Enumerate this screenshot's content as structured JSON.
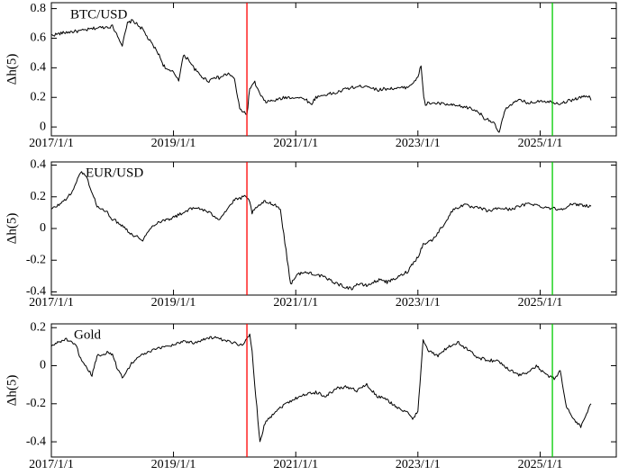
{
  "chart_data": [
    {
      "type": "line",
      "label": "BTC/USD",
      "ylabel": "Δh(5)",
      "x_ticks": [
        "2017/1/1",
        "2019/1/1",
        "2021/1/1",
        "2023/1/1",
        "2025/1/1"
      ],
      "y_ticks": [
        "0",
        "0.2",
        "0.4",
        "0.6",
        "0.8"
      ],
      "xlim": [
        "2017-01-01",
        "2026-04-01"
      ],
      "ylim": [
        -0.06,
        0.84
      ],
      "vlines": [
        {
          "x": "2020-03-15",
          "color": "#ff0000"
        },
        {
          "x": "2025-03-15",
          "color": "#00cc00"
        }
      ],
      "series": [
        {
          "color": "#000000",
          "x": [
            "2017-01-01",
            "2017-04-01",
            "2017-07-01",
            "2017-10-01",
            "2018-01-01",
            "2018-02-01",
            "2018-03-01",
            "2018-04-01",
            "2018-05-01",
            "2018-06-01",
            "2018-07-01",
            "2018-08-01",
            "2018-09-01",
            "2018-10-01",
            "2018-11-01",
            "2018-12-01",
            "2019-01-01",
            "2019-02-01",
            "2019-03-01",
            "2019-04-01",
            "2019-05-01",
            "2019-06-01",
            "2019-07-01",
            "2019-08-01",
            "2019-09-01",
            "2019-10-01",
            "2019-11-01",
            "2019-12-01",
            "2020-01-01",
            "2020-02-01",
            "2020-03-01",
            "2020-03-15",
            "2020-04-01",
            "2020-05-01",
            "2020-06-01",
            "2020-07-01",
            "2020-09-01",
            "2020-11-01",
            "2021-01-01",
            "2021-03-01",
            "2021-04-01",
            "2021-05-01",
            "2021-07-01",
            "2021-09-01",
            "2021-11-01",
            "2022-01-01",
            "2022-03-01",
            "2022-05-01",
            "2022-07-01",
            "2022-09-01",
            "2022-11-01",
            "2023-01-01",
            "2023-01-20",
            "2023-02-05",
            "2023-02-15",
            "2023-03-01",
            "2023-05-01",
            "2023-07-01",
            "2023-09-01",
            "2023-11-01",
            "2024-01-01",
            "2024-02-01",
            "2024-03-01",
            "2024-04-01",
            "2024-05-01",
            "2024-06-01",
            "2024-07-01",
            "2024-09-01",
            "2024-11-01",
            "2025-01-01",
            "2025-03-01",
            "2025-05-01",
            "2025-07-01",
            "2025-09-01",
            "2025-10-15",
            "2025-11-01"
          ],
          "y": [
            0.62,
            0.64,
            0.65,
            0.67,
            0.68,
            0.62,
            0.55,
            0.7,
            0.72,
            0.69,
            0.66,
            0.6,
            0.55,
            0.5,
            0.42,
            0.38,
            0.37,
            0.32,
            0.48,
            0.46,
            0.4,
            0.36,
            0.33,
            0.31,
            0.34,
            0.33,
            0.35,
            0.36,
            0.32,
            0.12,
            0.1,
            0.08,
            0.26,
            0.3,
            0.22,
            0.17,
            0.18,
            0.2,
            0.2,
            0.19,
            0.15,
            0.2,
            0.22,
            0.23,
            0.26,
            0.27,
            0.28,
            0.25,
            0.26,
            0.26,
            0.27,
            0.33,
            0.42,
            0.2,
            0.15,
            0.16,
            0.16,
            0.15,
            0.14,
            0.13,
            0.1,
            0.06,
            0.05,
            0.02,
            -0.04,
            0.1,
            0.15,
            0.18,
            0.16,
            0.18,
            0.17,
            0.16,
            0.18,
            0.2,
            0.21,
            0.18
          ]
        }
      ]
    },
    {
      "type": "line",
      "label": "EUR/USD",
      "ylabel": "Δh(5)",
      "x_ticks": [
        "2017/1/1",
        "2019/1/1",
        "2021/1/1",
        "2023/1/1",
        "2025/1/1"
      ],
      "y_ticks": [
        "-0.4",
        "-0.2",
        "0",
        "0.2",
        "0.4"
      ],
      "xlim": [
        "2017-01-01",
        "2026-04-01"
      ],
      "ylim": [
        -0.42,
        0.42
      ],
      "vlines": [
        {
          "x": "2020-03-15",
          "color": "#ff0000"
        },
        {
          "x": "2025-03-15",
          "color": "#00cc00"
        }
      ],
      "series": [
        {
          "color": "#000000",
          "x": [
            "2017-01-01",
            "2017-03-01",
            "2017-05-01",
            "2017-06-01",
            "2017-07-01",
            "2017-08-01",
            "2017-10-01",
            "2017-12-01",
            "2018-01-01",
            "2018-03-01",
            "2018-05-01",
            "2018-07-01",
            "2018-09-01",
            "2018-10-01",
            "2018-12-01",
            "2019-01-01",
            "2019-03-01",
            "2019-04-01",
            "2019-06-01",
            "2019-08-01",
            "2019-10-01",
            "2019-12-01",
            "2020-01-01",
            "2020-02-01",
            "2020-03-01",
            "2020-03-15",
            "2020-04-01",
            "2020-04-15",
            "2020-06-01",
            "2020-07-01",
            "2020-09-01",
            "2020-10-01",
            "2020-12-01",
            "2021-01-01",
            "2021-02-01",
            "2021-04-01",
            "2021-06-01",
            "2021-08-01",
            "2021-10-01",
            "2021-12-01",
            "2022-01-01",
            "2022-03-01",
            "2022-05-01",
            "2022-06-01",
            "2022-07-01",
            "2022-09-01",
            "2022-10-01",
            "2022-11-01",
            "2022-12-01",
            "2023-01-01",
            "2023-02-01",
            "2023-04-01",
            "2023-06-01",
            "2023-08-01",
            "2023-10-01",
            "2023-12-01",
            "2024-01-01",
            "2024-03-01",
            "2024-05-01",
            "2024-07-01",
            "2024-09-01",
            "2024-11-01",
            "2025-01-01",
            "2025-03-01",
            "2025-05-01",
            "2025-07-01",
            "2025-09-01",
            "2025-11-01"
          ],
          "y": [
            0.12,
            0.16,
            0.22,
            0.3,
            0.36,
            0.32,
            0.14,
            0.1,
            0.06,
            0.02,
            -0.04,
            -0.07,
            0.02,
            0.04,
            0.06,
            0.07,
            0.1,
            0.12,
            0.13,
            0.1,
            0.06,
            0.14,
            0.18,
            0.19,
            0.2,
            0.19,
            0.17,
            0.1,
            0.15,
            0.17,
            0.15,
            0.12,
            -0.35,
            -0.3,
            -0.28,
            -0.28,
            -0.3,
            -0.33,
            -0.36,
            -0.38,
            -0.35,
            -0.36,
            -0.33,
            -0.32,
            -0.34,
            -0.31,
            -0.29,
            -0.27,
            -0.22,
            -0.18,
            -0.1,
            -0.07,
            0.02,
            0.12,
            0.15,
            0.13,
            0.13,
            0.11,
            0.13,
            0.12,
            0.14,
            0.16,
            0.14,
            0.13,
            0.12,
            0.15,
            0.15,
            0.14
          ]
        }
      ]
    },
    {
      "type": "line",
      "label": "Gold",
      "ylabel": "Δh(5)",
      "x_ticks": [
        "2017/1/1",
        "2019/1/1",
        "2021/1/1",
        "2023/1/1",
        "2025/1/1"
      ],
      "y_ticks": [
        "-0.4",
        "-0.2",
        "0",
        "0.2"
      ],
      "xlim": [
        "2017-01-01",
        "2026-04-01"
      ],
      "ylim": [
        -0.48,
        0.22
      ],
      "vlines": [
        {
          "x": "2020-03-15",
          "color": "#ff0000"
        },
        {
          "x": "2025-03-15",
          "color": "#00cc00"
        }
      ],
      "series": [
        {
          "color": "#000000",
          "x": [
            "2017-01-01",
            "2017-02-01",
            "2017-04-01",
            "2017-06-01",
            "2017-07-01",
            "2017-09-01",
            "2017-10-01",
            "2017-12-01",
            "2018-01-01",
            "2018-02-01",
            "2018-03-01",
            "2018-05-01",
            "2018-07-01",
            "2018-09-01",
            "2018-11-01",
            "2019-01-01",
            "2019-03-01",
            "2019-05-01",
            "2019-07-01",
            "2019-09-01",
            "2019-11-01",
            "2020-01-01",
            "2020-02-01",
            "2020-03-01",
            "2020-03-15",
            "2020-04-01",
            "2020-04-15",
            "2020-05-01",
            "2020-06-01",
            "2020-07-01",
            "2020-09-01",
            "2020-11-01",
            "2021-01-01",
            "2021-03-01",
            "2021-05-01",
            "2021-07-01",
            "2021-09-01",
            "2021-11-01",
            "2022-01-01",
            "2022-03-01",
            "2022-05-01",
            "2022-07-01",
            "2022-09-01",
            "2022-11-01",
            "2022-12-01",
            "2023-01-01",
            "2023-02-01",
            "2023-03-01",
            "2023-05-01",
            "2023-07-01",
            "2023-09-01",
            "2023-11-01",
            "2024-01-01",
            "2024-03-01",
            "2024-05-01",
            "2024-07-01",
            "2024-09-01",
            "2024-11-01",
            "2024-12-15",
            "2025-01-01",
            "2025-03-01",
            "2025-04-01",
            "2025-05-01",
            "2025-06-01",
            "2025-07-01",
            "2025-09-01",
            "2025-11-01"
          ],
          "y": [
            0.1,
            0.12,
            0.14,
            0.1,
            0.02,
            -0.05,
            0.05,
            0.07,
            0.06,
            -0.02,
            -0.06,
            0.02,
            0.06,
            0.08,
            0.1,
            0.11,
            0.13,
            0.12,
            0.14,
            0.15,
            0.13,
            0.12,
            0.11,
            0.12,
            0.14,
            0.16,
            0.08,
            -0.1,
            -0.4,
            -0.3,
            -0.24,
            -0.2,
            -0.17,
            -0.15,
            -0.14,
            -0.16,
            -0.12,
            -0.11,
            -0.13,
            -0.1,
            -0.16,
            -0.18,
            -0.22,
            -0.25,
            -0.28,
            -0.24,
            0.14,
            0.08,
            0.05,
            0.1,
            0.12,
            0.08,
            0.04,
            0.03,
            0.02,
            -0.02,
            -0.05,
            -0.03,
            0.0,
            -0.02,
            -0.06,
            -0.07,
            -0.02,
            -0.2,
            -0.26,
            -0.32,
            -0.2
          ]
        }
      ]
    }
  ]
}
